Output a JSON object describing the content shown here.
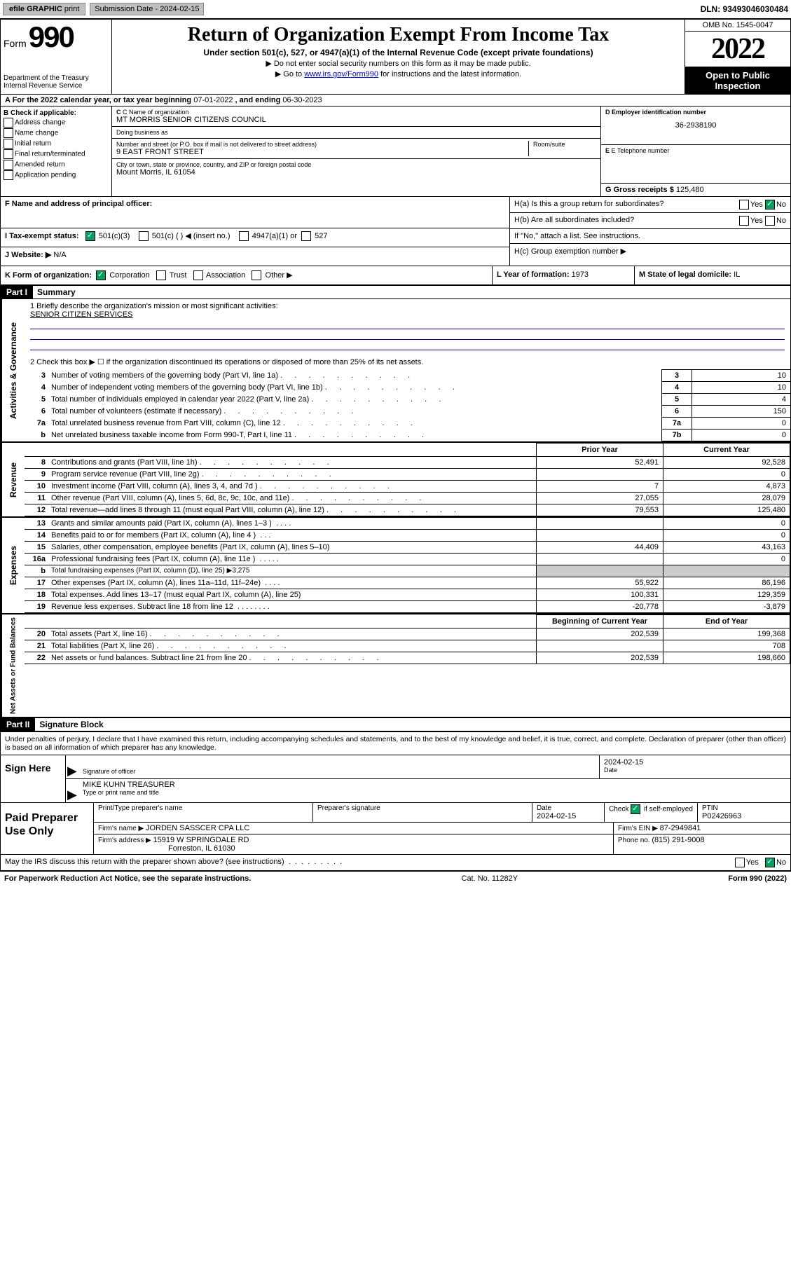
{
  "colors": {
    "black": "#000000",
    "white": "#ffffff",
    "link_blue": "#0000cc",
    "btn_gray": "#bfbfbf",
    "check_green": "#00a060",
    "cell_gray": "#cccccc",
    "underline_blue": "#0000aa"
  },
  "fonts": {
    "body": {
      "family": "Arial, Helvetica, sans-serif",
      "size_pt": 8
    },
    "serif_heavy": {
      "family": "Georgia, Times New Roman, serif",
      "size_pt": 32,
      "weight": 900
    },
    "title_serif": {
      "family": "Georgia, Times New Roman, serif",
      "size_pt": 21,
      "weight": "bold"
    }
  },
  "topbar": {
    "efile_label": "efile GRAPHIC",
    "print_label": "print",
    "submission_label": "Submission Date - 2024-02-15",
    "dln": "DLN: 93493046030484"
  },
  "header": {
    "form_word": "Form",
    "form_number": "990",
    "dept": "Department of the Treasury",
    "irs": "Internal Revenue Service",
    "title": "Return of Organization Exempt From Income Tax",
    "subtitle": "Under section 501(c), 527, or 4947(a)(1) of the Internal Revenue Code (except private foundations)",
    "instr1": "▶ Do not enter social security numbers on this form as it may be made public.",
    "instr2_pre": "▶ Go to ",
    "instr2_link": "www.irs.gov/Form990",
    "instr2_post": " for instructions and the latest information.",
    "omb": "OMB No. 1545-0047",
    "year": "2022",
    "open_public": "Open to Public Inspection"
  },
  "calyear": {
    "text_pre": "A For the 2022 calendar year, or tax year beginning ",
    "begin": "07-01-2022",
    "text_mid": " , and ending ",
    "end": "06-30-2023"
  },
  "sectionB": {
    "label": "B Check if applicable:",
    "items": [
      "Address change",
      "Name change",
      "Initial return",
      "Final return/terminated",
      "Amended return",
      "Application pending"
    ]
  },
  "sectionC": {
    "name_label": "C Name of organization",
    "name": "MT MORRIS SENIOR CITIZENS COUNCIL",
    "dba_label": "Doing business as",
    "dba": "",
    "addr_label": "Number and street (or P.O. box if mail is not delivered to street address)",
    "room_label": "Room/suite",
    "addr": "9 EAST FRONT STREET",
    "city_label": "City or town, state or province, country, and ZIP or foreign postal code",
    "city": "Mount Morris, IL  61054"
  },
  "sectionD": {
    "label": "D Employer identification number",
    "ein": "36-2938190"
  },
  "sectionE": {
    "label": "E Telephone number",
    "phone": ""
  },
  "sectionG": {
    "label": "G Gross receipts $",
    "amount": "125,480"
  },
  "sectionF": {
    "label": "F Name and address of principal officer:",
    "value": ""
  },
  "sectionH": {
    "a_label": "H(a)  Is this a group return for subordinates?",
    "a_yes": "Yes",
    "a_no": "No",
    "b_label": "H(b)  Are all subordinates included?",
    "b_yes": "Yes",
    "b_no": "No",
    "b_note": "If \"No,\" attach a list. See instructions.",
    "c_label": "H(c)  Group exemption number ▶"
  },
  "sectionI": {
    "label": "I   Tax-exempt status:",
    "c3": "501(c)(3)",
    "c_other": "501(c) (  ) ◀ (insert no.)",
    "a4947": "4947(a)(1) or",
    "s527": "527"
  },
  "sectionJ": {
    "label": "J   Website: ▶",
    "value": "N/A"
  },
  "sectionK": {
    "label": "K Form of organization:",
    "corp": "Corporation",
    "trust": "Trust",
    "assoc": "Association",
    "other": "Other ▶"
  },
  "sectionL": {
    "label": "L Year of formation:",
    "year": "1973"
  },
  "sectionM": {
    "label": "M State of legal domicile:",
    "state": "IL"
  },
  "part1": {
    "header": "Part I",
    "title": "Summary",
    "q1_label": "1   Briefly describe the organization's mission or most significant activities:",
    "q1_value": "SENIOR CITIZEN SERVICES",
    "q2_label": "2   Check this box ▶ ☐  if the organization discontinued its operations or disposed of more than 25% of its net assets.",
    "vlabel_ag": "Activities & Governance",
    "vlabel_rev": "Revenue",
    "vlabel_exp": "Expenses",
    "vlabel_na": "Net Assets or Fund Balances",
    "governance_rows": [
      {
        "n": "3",
        "desc": "Number of voting members of the governing body (Part VI, line 1a)",
        "box": "3",
        "val": "10"
      },
      {
        "n": "4",
        "desc": "Number of independent voting members of the governing body (Part VI, line 1b)",
        "box": "4",
        "val": "10"
      },
      {
        "n": "5",
        "desc": "Total number of individuals employed in calendar year 2022 (Part V, line 2a)",
        "box": "5",
        "val": "4"
      },
      {
        "n": "6",
        "desc": "Total number of volunteers (estimate if necessary)",
        "box": "6",
        "val": "150"
      },
      {
        "n": "7a",
        "desc": "Total unrelated business revenue from Part VIII, column (C), line 12",
        "box": "7a",
        "val": "0"
      },
      {
        "n": "b",
        "desc": "Net unrelated business taxable income from Form 990-T, Part I, line 11",
        "box": "7b",
        "val": "0"
      }
    ],
    "col_prior": "Prior Year",
    "col_current": "Current Year",
    "col_begin": "Beginning of Current Year",
    "col_end": "End of Year",
    "revenue_rows": [
      {
        "n": "8",
        "desc": "Contributions and grants (Part VIII, line 1h)",
        "prior": "52,491",
        "curr": "92,528"
      },
      {
        "n": "9",
        "desc": "Program service revenue (Part VIII, line 2g)",
        "prior": "",
        "curr": "0"
      },
      {
        "n": "10",
        "desc": "Investment income (Part VIII, column (A), lines 3, 4, and 7d )",
        "prior": "7",
        "curr": "4,873"
      },
      {
        "n": "11",
        "desc": "Other revenue (Part VIII, column (A), lines 5, 6d, 8c, 9c, 10c, and 11e)",
        "prior": "27,055",
        "curr": "28,079"
      },
      {
        "n": "12",
        "desc": "Total revenue—add lines 8 through 11 (must equal Part VIII, column (A), line 12)",
        "prior": "79,553",
        "curr": "125,480"
      }
    ],
    "expense_rows": [
      {
        "n": "13",
        "desc": "Grants and similar amounts paid (Part IX, column (A), lines 1–3 )",
        "prior": "",
        "curr": "0",
        "dots": ".   .   .   ."
      },
      {
        "n": "14",
        "desc": "Benefits paid to or for members (Part IX, column (A), line 4 )",
        "prior": "",
        "curr": "0",
        "dots": ".   .   ."
      },
      {
        "n": "15",
        "desc": "Salaries, other compensation, employee benefits (Part IX, column (A), lines 5–10)",
        "prior": "44,409",
        "curr": "43,163",
        "dots": ""
      },
      {
        "n": "16a",
        "desc": "Professional fundraising fees (Part IX, column (A), line 11e )",
        "prior": "",
        "curr": "0",
        "dots": ".   .   .   .   ."
      },
      {
        "n": "b",
        "desc": "Total fundraising expenses (Part IX, column (D), line 25) ▶3,275",
        "prior": "__gray__",
        "curr": "__gray__",
        "dots": "",
        "small": true
      },
      {
        "n": "17",
        "desc": "Other expenses (Part IX, column (A), lines 11a–11d, 11f–24e)",
        "prior": "55,922",
        "curr": "86,196",
        "dots": ".   .   .   ."
      },
      {
        "n": "18",
        "desc": "Total expenses. Add lines 13–17 (must equal Part IX, column (A), line 25)",
        "prior": "100,331",
        "curr": "129,359",
        "dots": ""
      },
      {
        "n": "19",
        "desc": "Revenue less expenses. Subtract line 18 from line 12",
        "prior": "-20,778",
        "curr": "-3,879",
        "dots": ".   .   .   .   .   .   .   ."
      }
    ],
    "netassets_rows": [
      {
        "n": "20",
        "desc": "Total assets (Part X, line 16)",
        "prior": "202,539",
        "curr": "199,368"
      },
      {
        "n": "21",
        "desc": "Total liabilities (Part X, line 26)",
        "prior": "",
        "curr": "708"
      },
      {
        "n": "22",
        "desc": "Net assets or fund balances. Subtract line 21 from line 20",
        "prior": "202,539",
        "curr": "198,660"
      }
    ]
  },
  "part2": {
    "header": "Part II",
    "title": "Signature Block",
    "penalties": "Under penalties of perjury, I declare that I have examined this return, including accompanying schedules and statements, and to the best of my knowledge and belief, it is true, correct, and complete. Declaration of preparer (other than officer) is based on all information of which preparer has any knowledge."
  },
  "sign": {
    "left": "Sign Here",
    "sig_label": "Signature of officer",
    "date_label": "Date",
    "date": "2024-02-15",
    "name": "MIKE KUHN  TREASURER",
    "name_label": "Type or print name and title"
  },
  "paid": {
    "left": "Paid Preparer Use Only",
    "col_preparer": "Print/Type preparer's name",
    "col_sig": "Preparer's signature",
    "col_date": "Date",
    "date": "2024-02-15",
    "check_label": "Check ☑ if self-employed",
    "ptin_label": "PTIN",
    "ptin": "P02426963",
    "firm_name_label": "Firm's name    ▶",
    "firm_name": "JORDEN SASSCER CPA LLC",
    "firm_ein_label": "Firm's EIN ▶",
    "firm_ein": "87-2949841",
    "firm_addr_label": "Firm's address ▶",
    "firm_addr1": "15919 W SPRINGDALE RD",
    "firm_addr2": "Forreston, IL  61030",
    "phone_label": "Phone no.",
    "phone": "(815) 291-9008"
  },
  "discuss": {
    "text": "May the IRS discuss this return with the preparer shown above? (see instructions)",
    "yes": "Yes",
    "no": "No"
  },
  "footer": {
    "left": "For Paperwork Reduction Act Notice, see the separate instructions.",
    "mid": "Cat. No. 11282Y",
    "right": "Form 990 (2022)"
  }
}
